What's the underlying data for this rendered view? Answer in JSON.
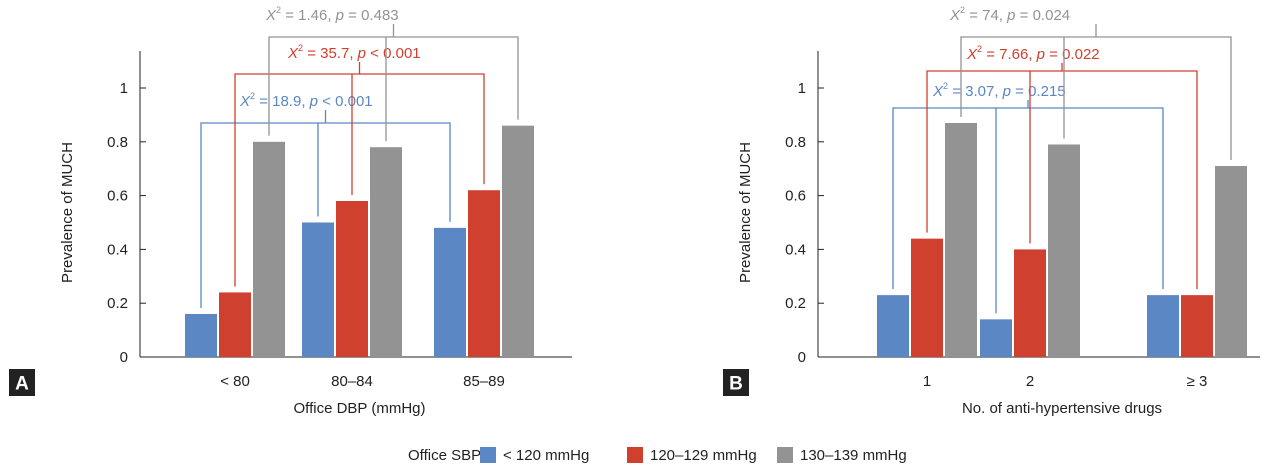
{
  "colors": {
    "lt120": "#5b87c4",
    "s120_129": "#d0402f",
    "s130_139": "#939393",
    "axis": "#222222",
    "panel_label_bg": "#222222"
  },
  "series_names": [
    "< 120 mmHg",
    "120–129 mmHg",
    "130–139 mmHg"
  ],
  "legend": {
    "title": "Office SBP"
  },
  "chart_data": [
    {
      "type": "bar",
      "panel_label": "A",
      "title": "",
      "xlabel": "Office DBP (mmHg)",
      "ylabel": "Prevalence of MUCH",
      "ylim": [
        0,
        1
      ],
      "yticks": [
        0,
        0.2,
        0.4,
        0.6,
        0.8,
        1
      ],
      "ytick_labels": [
        "0",
        "0.2",
        "0.4",
        "0.6",
        "0.8",
        "1"
      ],
      "categories": [
        "< 80",
        "80–84",
        "85–89"
      ],
      "series": [
        {
          "name": "< 120 mmHg",
          "values": [
            0.16,
            0.5,
            0.48
          ]
        },
        {
          "name": "120–129 mmHg",
          "values": [
            0.24,
            0.58,
            0.62
          ]
        },
        {
          "name": "130–139 mmHg",
          "values": [
            0.8,
            0.78,
            0.86
          ]
        }
      ],
      "annotations": [
        {
          "series": 0,
          "prefix": "X",
          "exp": "2",
          "stat": "18.9",
          "pop": "<",
          "pval": "0.001"
        },
        {
          "series": 1,
          "prefix": "X",
          "exp": "2",
          "stat": "35.7",
          "pop": "<",
          "pval": "0.001"
        },
        {
          "series": 2,
          "prefix": "X",
          "exp": "2",
          "stat": "1.46",
          "pop": "=",
          "pval": "0.483"
        }
      ]
    },
    {
      "type": "bar",
      "panel_label": "B",
      "title": "",
      "xlabel": "No. of anti-hypertensive drugs",
      "ylabel": "Prevalence of MUCH",
      "ylim": [
        0,
        1
      ],
      "yticks": [
        0,
        0.2,
        0.4,
        0.6,
        0.8,
        1
      ],
      "ytick_labels": [
        "0",
        "0.2",
        "0.4",
        "0.6",
        "0.8",
        "1"
      ],
      "categories": [
        "1",
        "2",
        "≥ 3"
      ],
      "series": [
        {
          "name": "< 120 mmHg",
          "values": [
            0.23,
            0.14,
            0.23
          ]
        },
        {
          "name": "120–129 mmHg",
          "values": [
            0.44,
            0.4,
            0.23
          ]
        },
        {
          "name": "130–139 mmHg",
          "values": [
            0.87,
            0.79,
            0.71
          ]
        }
      ],
      "annotations": [
        {
          "series": 0,
          "prefix": "X",
          "exp": "2",
          "stat": "3.07",
          "pop": "=",
          "pval": "0.215"
        },
        {
          "series": 1,
          "prefix": "X",
          "exp": "2",
          "stat": "7.66",
          "pop": "=",
          "pval": "0.022"
        },
        {
          "series": 2,
          "prefix": "X",
          "exp": "2",
          "stat": "74",
          "pop": "=",
          "pval": "0.024"
        }
      ]
    }
  ]
}
